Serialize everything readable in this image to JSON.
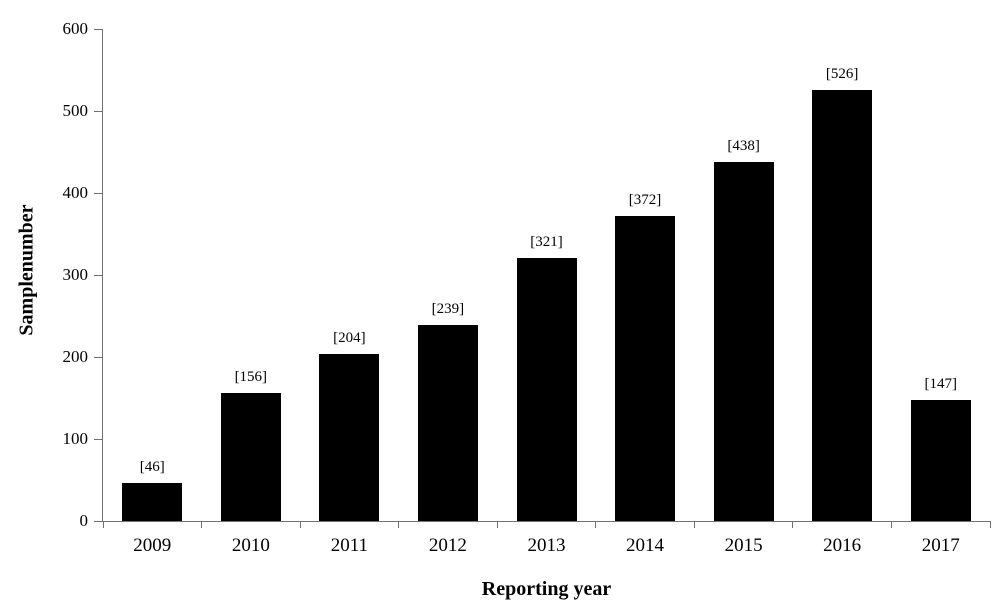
{
  "chart_data": {
    "type": "bar",
    "title": "",
    "xlabel": "Reporting year",
    "ylabel": "Samplenumber",
    "categories": [
      "2009",
      "2010",
      "2011",
      "2012",
      "2013",
      "2014",
      "2015",
      "2016",
      "2017"
    ],
    "values": [
      46,
      156,
      204,
      239,
      321,
      372,
      438,
      526,
      147
    ],
    "bar_labels": [
      "[46]",
      "[156]",
      "[204]",
      "[239]",
      "[321]",
      "[372]",
      "[438]",
      "[526]",
      "[147]"
    ],
    "ylim": [
      0,
      600
    ],
    "yticks": [
      0,
      100,
      200,
      300,
      400,
      500,
      600
    ],
    "grid": false,
    "legend": "none",
    "bar_color": "#000000",
    "axis_color": "#707070",
    "text_color": "#000000",
    "background_color": "#ffffff"
  }
}
